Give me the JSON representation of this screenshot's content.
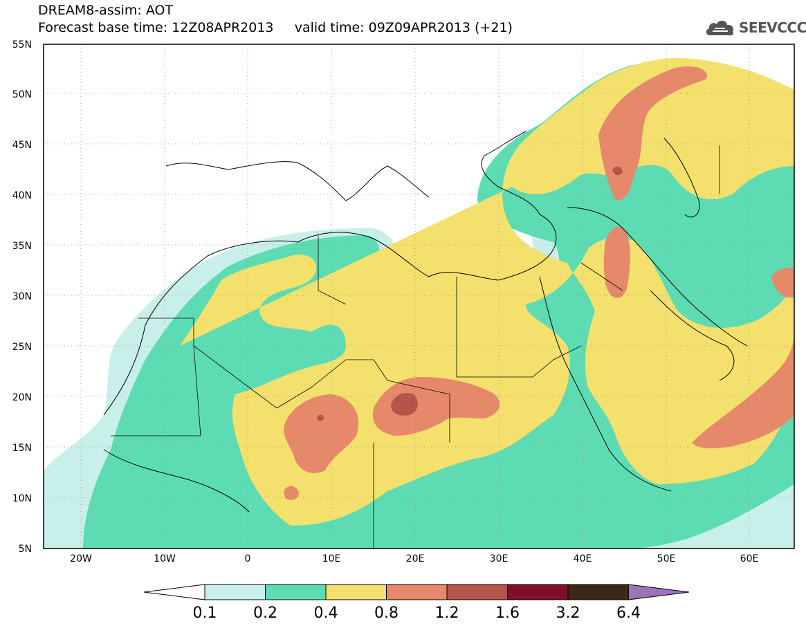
{
  "header": {
    "line1": "DREAM8-assim: AOT",
    "line2": "Forecast base time: 12Z08APR2013     valid time: 09Z09APR2013 (+21)"
  },
  "logo": {
    "text": "SEEVCCC",
    "icon": "cloud-icon"
  },
  "map": {
    "lat_labels": [
      "55N",
      "50N",
      "45N",
      "40N",
      "35N",
      "30N",
      "25N",
      "20N",
      "15N",
      "10N",
      "5N"
    ],
    "lon_labels": [
      "20W",
      "10W",
      "0",
      "10E",
      "20E",
      "30E",
      "40E",
      "50E",
      "60E"
    ]
  },
  "colorbar": {
    "levels": [
      "0.1",
      "0.2",
      "0.4",
      "0.8",
      "1.2",
      "1.6",
      "3.2",
      "6.4"
    ],
    "colors": [
      "#c9efea",
      "#5ddcb4",
      "#f4e06d",
      "#e6896a",
      "#b4544b",
      "#7f0f2a",
      "#3f2716",
      "#9e72b9"
    ]
  }
}
